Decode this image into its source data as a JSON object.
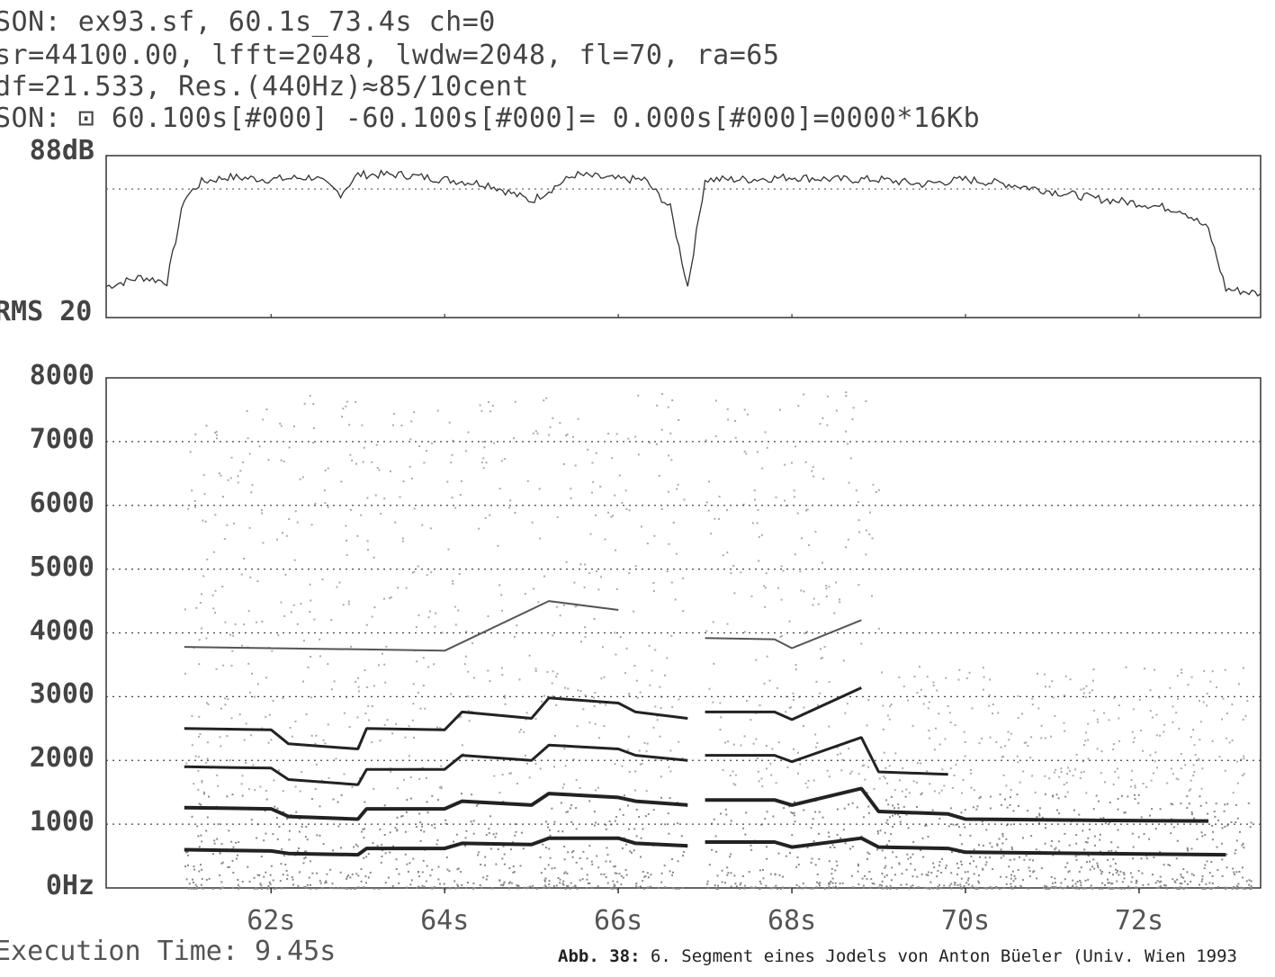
{
  "header": {
    "line1": "SON: ex93.sf, 60.1s_73.4s ch=0",
    "line2": "sr=44100.00, lfft=2048, lwdw=2048, fl=70, ra=65",
    "line3": "df=21.533, Res.(440Hz)≈85/10cent",
    "line4": "SON: ⊡ 60.100s[#000] -60.100s[#000]= 0.000s[#000]=0000*16Kb"
  },
  "footer": {
    "execution_time": "Execution Time: 9.45s",
    "caption_label": "Abb. 38:",
    "caption_text": " 6. Segment eines Jodels von Anton Büeler (Univ. Wien 1993"
  },
  "chart_data": [
    {
      "type": "line",
      "ylabel_top": "88dB",
      "ylabel_bottom": "RMS 20",
      "xlim": [
        60.1,
        73.4
      ],
      "ylim": [
        20,
        88
      ],
      "grid": "dotted-horizontal",
      "x": [
        60.1,
        60.5,
        60.8,
        61.0,
        61.2,
        61.5,
        62.0,
        62.5,
        62.8,
        63.0,
        63.5,
        64.0,
        64.5,
        65.0,
        65.5,
        66.0,
        66.3,
        66.6,
        66.8,
        67.0,
        67.5,
        68.0,
        68.5,
        69.0,
        69.5,
        70.0,
        70.5,
        71.0,
        71.5,
        72.0,
        72.5,
        72.8,
        73.0,
        73.4
      ],
      "values": [
        33,
        37,
        35,
        70,
        77,
        79,
        78,
        79,
        72,
        80,
        80,
        78,
        76,
        69,
        80,
        78,
        78,
        66,
        33,
        78,
        78,
        79,
        78,
        78,
        76,
        78,
        76,
        73,
        70,
        68,
        65,
        57,
        32,
        30
      ]
    },
    {
      "type": "heatmap",
      "title": "",
      "y_ticks": [
        "0Hz",
        "1000",
        "2000",
        "3000",
        "4000",
        "5000",
        "6000",
        "7000",
        "8000"
      ],
      "x_ticks": [
        "62s",
        "64s",
        "66s",
        "68s",
        "70s",
        "72s"
      ],
      "xlim": [
        60.1,
        73.4
      ],
      "ylim": [
        0,
        8000
      ],
      "grid": "dotted-horizontal",
      "harmonic_tracks_hz": [
        {
          "x": [
            61.0,
            62.0,
            62.2,
            63.0,
            63.1,
            64.0,
            64.2,
            65.0,
            65.2,
            66.0,
            66.2,
            66.8
          ],
          "f": [
            600,
            580,
            540,
            520,
            620,
            620,
            700,
            680,
            780,
            780,
            700,
            660
          ]
        },
        {
          "x": [
            67.0,
            67.8,
            68.0,
            68.8,
            69.0,
            69.8,
            70.0,
            71.5,
            73.0
          ],
          "f": [
            720,
            720,
            640,
            780,
            640,
            620,
            560,
            540,
            520
          ]
        },
        {
          "x": [
            61.0,
            62.0,
            62.2,
            63.0,
            63.1,
            64.0,
            64.2,
            65.0,
            65.2,
            66.0,
            66.2,
            66.8
          ],
          "f": [
            1260,
            1240,
            1120,
            1080,
            1240,
            1240,
            1360,
            1300,
            1480,
            1420,
            1360,
            1300
          ]
        },
        {
          "x": [
            67.0,
            67.8,
            68.0,
            68.8,
            69.0,
            69.8,
            70.0,
            71.5,
            72.8
          ],
          "f": [
            1380,
            1380,
            1300,
            1560,
            1200,
            1160,
            1080,
            1060,
            1050
          ]
        },
        {
          "x": [
            61.0,
            62.0,
            62.2,
            63.0,
            63.1,
            64.0,
            64.2,
            65.0,
            65.2,
            66.0,
            66.2,
            66.8
          ],
          "f": [
            1900,
            1880,
            1700,
            1620,
            1860,
            1860,
            2080,
            2000,
            2240,
            2180,
            2080,
            2000
          ]
        },
        {
          "x": [
            67.0,
            67.8,
            68.0,
            68.8,
            69.0,
            69.8
          ],
          "f": [
            2080,
            2080,
            1980,
            2360,
            1820,
            1780
          ]
        },
        {
          "x": [
            61.0,
            62.0,
            62.2,
            63.0,
            63.1,
            64.0,
            64.2,
            65.0,
            65.2,
            66.0,
            66.2,
            66.8
          ],
          "f": [
            2500,
            2480,
            2260,
            2180,
            2500,
            2480,
            2760,
            2660,
            2980,
            2900,
            2760,
            2660
          ]
        },
        {
          "x": [
            67.0,
            67.8,
            68.0,
            68.8
          ],
          "f": [
            2760,
            2760,
            2640,
            3140
          ]
        },
        {
          "x": [
            61.0,
            62.0,
            63.1,
            64.0,
            65.2,
            66.0
          ],
          "f": [
            3780,
            3760,
            3740,
            3720,
            4500,
            4360
          ]
        },
        {
          "x": [
            67.0,
            67.8,
            68.0,
            68.8
          ],
          "f": [
            3920,
            3900,
            3760,
            4200
          ]
        }
      ]
    }
  ]
}
